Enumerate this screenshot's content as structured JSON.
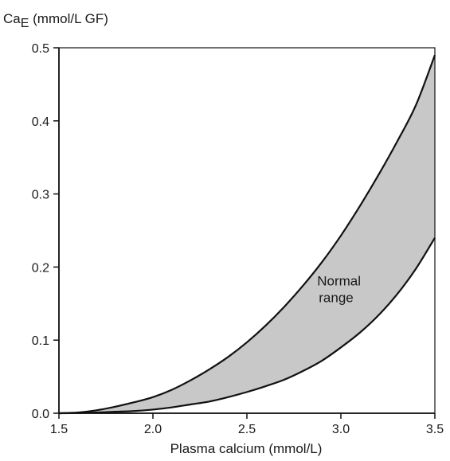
{
  "chart_data": {
    "type": "area",
    "ylabel_main": "Ca",
    "ylabel_sub": "E",
    "ylabel_unit": " (mmol/L GF)",
    "xlabel": "Plasma calcium (mmol/L)",
    "xlim": [
      1.5,
      3.5
    ],
    "ylim": [
      0.0,
      0.5
    ],
    "xticks": [
      {
        "value": 1.5,
        "label": "1.5"
      },
      {
        "value": 2.0,
        "label": "2.0"
      },
      {
        "value": 2.5,
        "label": "2.5"
      },
      {
        "value": 3.0,
        "label": "3.0"
      },
      {
        "value": 3.5,
        "label": "3.5"
      }
    ],
    "yticks": [
      {
        "value": 0.0,
        "label": "0.0"
      },
      {
        "value": 0.1,
        "label": "0.1"
      },
      {
        "value": 0.2,
        "label": "0.2"
      },
      {
        "value": 0.3,
        "label": "0.3"
      },
      {
        "value": 0.4,
        "label": "0.4"
      },
      {
        "value": 0.5,
        "label": "0.5"
      }
    ],
    "series": [
      {
        "role": "upper",
        "x": [
          1.5,
          1.6,
          1.7,
          1.8,
          1.9,
          2.0,
          2.1,
          2.2,
          2.3,
          2.4,
          2.5,
          2.6,
          2.7,
          2.8,
          2.9,
          3.0,
          3.1,
          3.2,
          3.3,
          3.4,
          3.5
        ],
        "y": [
          0.0,
          0.001,
          0.004,
          0.009,
          0.015,
          0.022,
          0.032,
          0.045,
          0.06,
          0.077,
          0.097,
          0.12,
          0.146,
          0.175,
          0.207,
          0.243,
          0.283,
          0.326,
          0.372,
          0.422,
          0.49
        ]
      },
      {
        "role": "lower",
        "x": [
          1.5,
          1.6,
          1.7,
          1.8,
          1.9,
          2.0,
          2.1,
          2.2,
          2.3,
          2.4,
          2.5,
          2.6,
          2.7,
          2.8,
          2.9,
          3.0,
          3.1,
          3.2,
          3.3,
          3.4,
          3.5
        ],
        "y": [
          0.0,
          0.0003,
          0.001,
          0.002,
          0.003,
          0.005,
          0.008,
          0.012,
          0.016,
          0.022,
          0.029,
          0.037,
          0.046,
          0.058,
          0.072,
          0.09,
          0.11,
          0.134,
          0.163,
          0.198,
          0.24
        ]
      }
    ],
    "band_fill": "#c8c8c8",
    "line_color": "#111111",
    "annotation": {
      "lines": [
        "Normal",
        "range"
      ],
      "x": 3.0,
      "y": 0.165
    }
  }
}
